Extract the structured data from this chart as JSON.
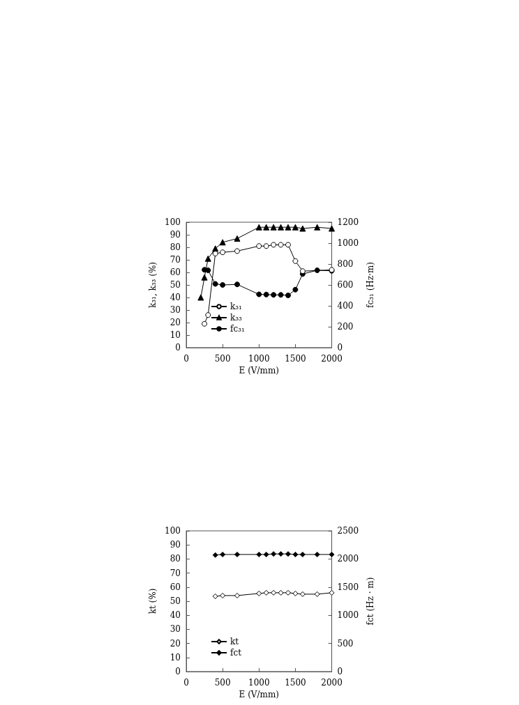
{
  "chart_data": [
    {
      "type": "line",
      "xlabel": "E (V/mm)",
      "ylabel": "k₃₁, k₃₃ (%)",
      "y2label": "fc₃₁ (Hz·m)",
      "xlim": [
        0,
        2000
      ],
      "xticks": [
        0,
        500,
        1000,
        1500,
        2000
      ],
      "ylim": [
        0,
        100
      ],
      "yticks": [
        0,
        10,
        20,
        30,
        40,
        50,
        60,
        70,
        80,
        90,
        100
      ],
      "y2lim": [
        0,
        1200
      ],
      "y2ticks": [
        0,
        200,
        400,
        600,
        800,
        1000,
        1200
      ],
      "grid": false,
      "legend": "bottom left",
      "line_style": "solid",
      "series": [
        {
          "name": "k₃₁",
          "color": "#000000",
          "marker": "circle",
          "x": [
            250,
            300,
            400,
            500,
            700,
            1000,
            1100,
            1200,
            1300,
            1400,
            1500,
            1600,
            2000
          ],
          "values": [
            19,
            26,
            75,
            76,
            77,
            81,
            81,
            82,
            82,
            82,
            69,
            61,
            62
          ]
        },
        {
          "name": "k₃₃",
          "color": "#000000",
          "marker": "triangle",
          "x": [
            200,
            250,
            300,
            400,
            500,
            700,
            1000,
            1100,
            1200,
            1300,
            1400,
            1500,
            1600,
            1800,
            2000
          ],
          "values": [
            40,
            56,
            71,
            79,
            84,
            87,
            96,
            96,
            96,
            96,
            96,
            96,
            95,
            96,
            95
          ]
        },
        {
          "name": "fc₃₁",
          "color": "#000000",
          "marker": "circle",
          "axis": "y2",
          "x": [
            250,
            300,
            400,
            500,
            700,
            1000,
            1100,
            1200,
            1300,
            1400,
            1500,
            1600,
            1800,
            2000
          ],
          "values": [
            745,
            740,
            610,
            600,
            605,
            510,
            508,
            505,
            505,
            500,
            555,
            705,
            740,
            735
          ]
        }
      ]
    },
    {
      "type": "line",
      "xlabel": "E (V/mm)",
      "ylabel": "kt (%)",
      "y2label": "fct (Hz · m)",
      "xlim": [
        0,
        2000
      ],
      "xticks": [
        0,
        500,
        1000,
        1500,
        2000
      ],
      "ylim": [
        0,
        100
      ],
      "yticks": [
        0,
        10,
        20,
        30,
        40,
        50,
        60,
        70,
        80,
        90,
        100
      ],
      "y2lim": [
        0,
        2500
      ],
      "y2ticks": [
        0,
        500,
        1000,
        1500,
        2000,
        2500
      ],
      "grid": false,
      "legend": "bottom left",
      "line_style": "solid",
      "series": [
        {
          "name": "kt",
          "color": "#000000",
          "marker": "diamond",
          "x": [
            400,
            500,
            700,
            1000,
            1100,
            1200,
            1300,
            1400,
            1500,
            1600,
            1800,
            2000
          ],
          "values": [
            53.5,
            54,
            54,
            55.5,
            56,
            56,
            56,
            56,
            55.5,
            55,
            55,
            56
          ]
        },
        {
          "name": "fct",
          "color": "#000000",
          "marker": "diamond",
          "axis": "y2",
          "x": [
            400,
            500,
            700,
            1000,
            1100,
            1200,
            1300,
            1400,
            1500,
            1600,
            1800,
            2000
          ],
          "values": [
            2070,
            2080,
            2080,
            2080,
            2080,
            2090,
            2090,
            2090,
            2080,
            2080,
            2080,
            2080
          ]
        }
      ]
    }
  ]
}
